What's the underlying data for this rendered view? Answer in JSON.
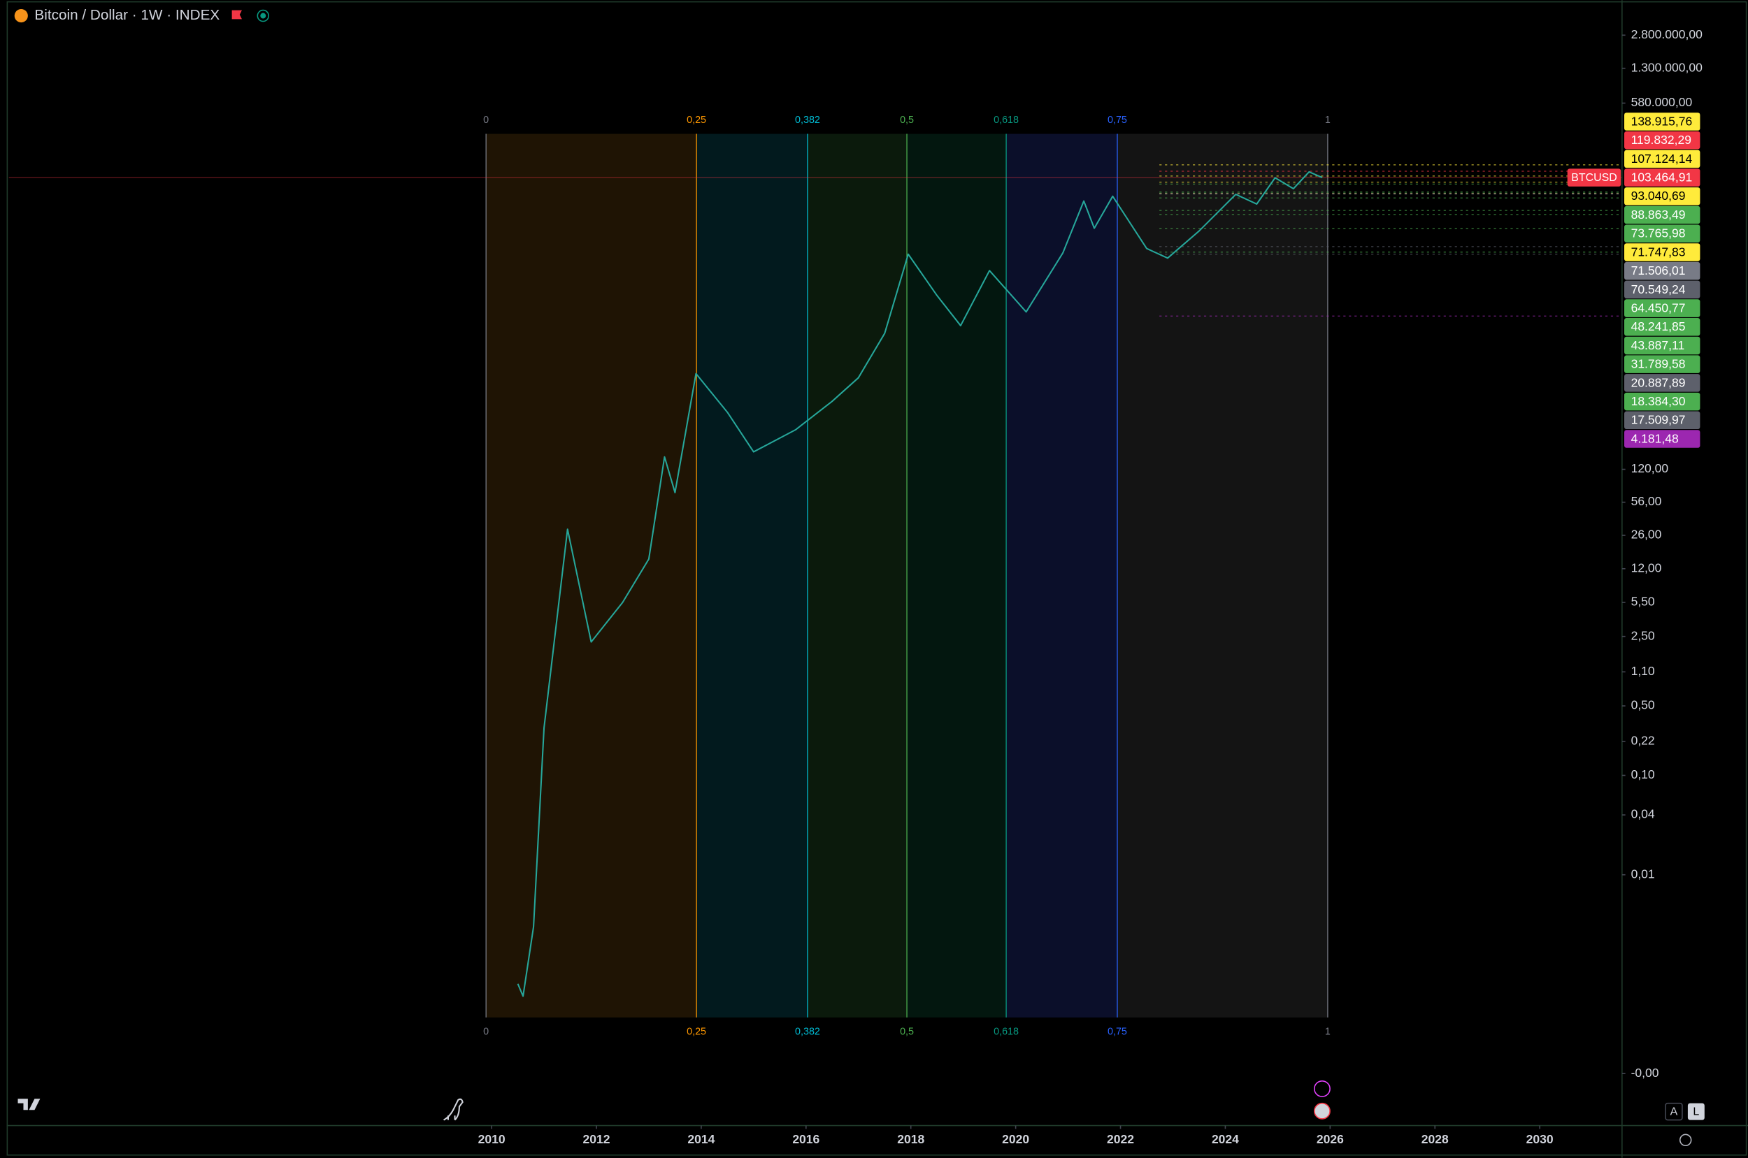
{
  "window": {
    "symbol_title": "Bitcoin / Dollar · 1W · INDEX",
    "buttons": [
      "A",
      "L"
    ]
  },
  "chart_data": {
    "type": "line",
    "color": "#26a69a",
    "log_scale": true,
    "x": [
      2010.5,
      2010.6,
      2010.8,
      2011.0,
      2011.45,
      2011.9,
      2012.5,
      2013.0,
      2013.3,
      2013.5,
      2013.9,
      2014.5,
      2015.0,
      2015.8,
      2016.5,
      2017.0,
      2017.5,
      2017.95,
      2018.5,
      2018.95,
      2019.5,
      2020.2,
      2020.9,
      2021.3,
      2021.5,
      2021.85,
      2022.5,
      2022.9,
      2023.5,
      2024.2,
      2024.6,
      2024.95,
      2025.3,
      2025.6,
      2025.85
    ],
    "values": [
      0.0008,
      0.0006,
      0.003,
      0.3,
      30,
      2.2,
      5.5,
      15,
      160,
      70,
      1100,
      450,
      180,
      300,
      580,
      1000,
      2800,
      17500,
      6700,
      3350,
      12000,
      4600,
      18000,
      60000,
      32000,
      67000,
      20000,
      16000,
      30000,
      70000,
      56000,
      103000,
      80000,
      118000,
      103464.91
    ],
    "xlim": [
      2000.79,
      2031.57
    ],
    "ylim": [
      3e-05,
      6300000
    ],
    "xticks": [
      2010,
      2012,
      2014,
      2016,
      2018,
      2020,
      2022,
      2024,
      2026,
      2028,
      2030
    ],
    "yticks": [
      {
        "value": 2800000,
        "label": "2.800.000,00"
      },
      {
        "value": 1300000,
        "label": "1.300.000,00"
      },
      {
        "value": 580000,
        "label": "580.000,00"
      },
      {
        "value": 120,
        "label": "120,00"
      },
      {
        "value": 56,
        "label": "56,00"
      },
      {
        "value": 26,
        "label": "26,00"
      },
      {
        "value": 12,
        "label": "12,00"
      },
      {
        "value": 5.5,
        "label": "5,50"
      },
      {
        "value": 2.5,
        "label": "2,50"
      },
      {
        "value": 1.1,
        "label": "1,10"
      },
      {
        "value": 0.5,
        "label": "0,50"
      },
      {
        "value": 0.22,
        "label": "0,22"
      },
      {
        "value": 0.1,
        "label": "0,10"
      },
      {
        "value": 0.04,
        "label": "0,04"
      },
      {
        "value": 0.01,
        "label": "0,01"
      },
      {
        "value": 0.0001,
        "label": "-0,00"
      }
    ],
    "fib_time_zone": {
      "levels": [
        0,
        {
          "value": 0.25,
          "label": "0,25"
        },
        {
          "value": 0.382,
          "label": "0,382"
        },
        {
          "value": 0.5,
          "label": "0,5"
        },
        {
          "value": 0.618,
          "label": "0,618"
        },
        {
          "value": 0.75,
          "label": "0,75"
        },
        1
      ],
      "colors": [
        "#787b86",
        "#ff9800",
        "#00bcd4",
        "#4caf50",
        "#089981",
        "#2962ff",
        "#787b86"
      ],
      "fills": [
        "#1f1404",
        "#021a1e",
        "#0b1a0c",
        "#03170f",
        "#0b0f2a",
        "#141414"
      ]
    },
    "price_tags": [
      {
        "value": 138915.76,
        "label": "138.915,76",
        "color": "#ffeb3b",
        "text_color": "#000000"
      },
      {
        "value": 119832.29,
        "label": "119.832,29",
        "color": "#f23645",
        "text_color": "#ffffff"
      },
      {
        "value": 107124.14,
        "label": "107.124,14",
        "color": "#ffeb3b",
        "text_color": "#000000"
      },
      {
        "value": 103464.91,
        "label": "103.464,91",
        "color": "#f23645",
        "text_color": "#ffffff",
        "symbol": "BTCUSD"
      },
      {
        "value": 93040.69,
        "label": "93.040,69",
        "color": "#ffeb3b",
        "text_color": "#000000"
      },
      {
        "value": 88863.49,
        "label": "88.863,49",
        "color": "#4caf50",
        "text_color": "#ffffff"
      },
      {
        "value": 73765.98,
        "label": "73.765,98",
        "color": "#4caf50",
        "text_color": "#ffffff"
      },
      {
        "value": 71747.83,
        "label": "71.747,83",
        "color": "#ffeb3b",
        "text_color": "#000000"
      },
      {
        "value": 71506.01,
        "label": "71.506,01",
        "color": "#787b86",
        "text_color": "#ffffff"
      },
      {
        "value": 70549.24,
        "label": "70.549,24",
        "color": "#5d606b",
        "text_color": "#ffffff"
      },
      {
        "value": 64450.77,
        "label": "64.450,77",
        "color": "#4caf50",
        "text_color": "#ffffff"
      },
      {
        "value": 48241.85,
        "label": "48.241,85",
        "color": "#4caf50",
        "text_color": "#ffffff"
      },
      {
        "value": 43887.11,
        "label": "43.887,11",
        "color": "#4caf50",
        "text_color": "#ffffff"
      },
      {
        "value": 31789.58,
        "label": "31.789,58",
        "color": "#4caf50",
        "text_color": "#ffffff"
      },
      {
        "value": 20887.89,
        "label": "20.887,89",
        "color": "#5d606b",
        "text_color": "#ffffff"
      },
      {
        "value": 18384.3,
        "label": "18.384,30",
        "color": "#4caf50",
        "text_color": "#ffffff"
      },
      {
        "value": 17509.97,
        "label": "17.509,97",
        "color": "#5d606b",
        "text_color": "#ffffff"
      },
      {
        "value": 4181.48,
        "label": "4.181,48",
        "color": "#9c27b0",
        "text_color": "#ffffff"
      }
    ]
  }
}
